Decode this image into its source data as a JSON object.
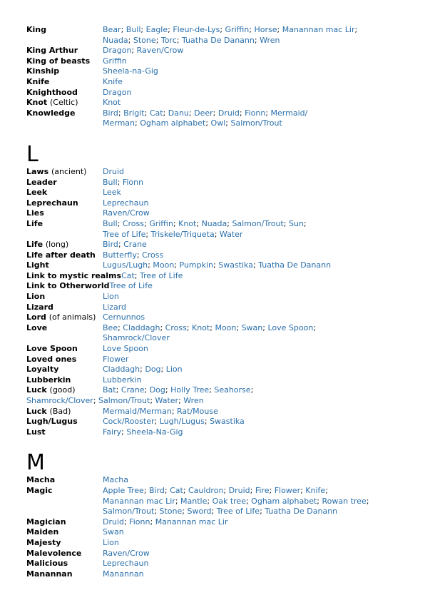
{
  "meta": {
    "background_color": "#ffffff",
    "link_color": "#2a6fab",
    "separator_color": "#1a1a1a",
    "text_color": "#000000",
    "separator": "; "
  },
  "sections": [
    {
      "letter": "",
      "entries": [
        {
          "term": "King",
          "note": "",
          "lines": [
            {
              "links": [
                "Bear",
                "Bull",
                "Eagle",
                "Fleur-de-Lys",
                "Griffin",
                "Horse",
                "Manannan mac Lir"
              ],
              "end": ";"
            },
            {
              "links": [
                "Nuada",
                "Stone",
                "Torc",
                "Tuatha De Danann",
                "Wren"
              ],
              "end": ""
            }
          ]
        },
        {
          "term": "King Arthur",
          "note": "",
          "lines": [
            {
              "links": [
                "Dragon",
                "Raven/Crow"
              ],
              "end": ""
            }
          ]
        },
        {
          "term": "King of beasts",
          "note": "",
          "lines": [
            {
              "links": [
                "Griffin"
              ],
              "end": ""
            }
          ]
        },
        {
          "term": "Kinship",
          "note": "",
          "lines": [
            {
              "links": [
                "Sheela-na-Gig"
              ],
              "end": ""
            }
          ]
        },
        {
          "term": "Knife",
          "note": "",
          "lines": [
            {
              "links": [
                "Knife"
              ],
              "end": ""
            }
          ]
        },
        {
          "term": "Knighthood",
          "note": "",
          "lines": [
            {
              "links": [
                "Dragon"
              ],
              "end": ""
            }
          ]
        },
        {
          "term": "Knot",
          "note": "(Celtic)",
          "lines": [
            {
              "links": [
                "Knot"
              ],
              "end": ""
            }
          ]
        },
        {
          "term": "Knowledge",
          "note": "",
          "lines": [
            {
              "links": [
                "Bird",
                "Brigit",
                "Cat",
                "Danu",
                "Deer",
                "Druid",
                "Fionn",
                "Mermaid/"
              ],
              "end": ""
            },
            {
              "links": [
                "Merman",
                "Ogham alphabet",
                "Owl",
                "Salmon/Trout"
              ],
              "end": ""
            }
          ]
        }
      ]
    },
    {
      "letter": "L",
      "entries": [
        {
          "term": "Laws",
          "note": "(ancient)",
          "lines": [
            {
              "links": [
                "Druid"
              ],
              "end": ""
            }
          ]
        },
        {
          "term": "Leader",
          "note": "",
          "lines": [
            {
              "links": [
                "Bull",
                "Fionn"
              ],
              "end": ""
            }
          ]
        },
        {
          "term": "Leek",
          "note": "",
          "lines": [
            {
              "links": [
                "Leek"
              ],
              "end": ""
            }
          ]
        },
        {
          "term": "Leprechaun",
          "note": "",
          "lines": [
            {
              "links": [
                "Leprechaun"
              ],
              "end": ""
            }
          ]
        },
        {
          "term": "Lies",
          "note": "",
          "lines": [
            {
              "links": [
                "Raven/Crow"
              ],
              "end": ""
            }
          ]
        },
        {
          "term": "Life",
          "note": "",
          "lines": [
            {
              "links": [
                "Bull",
                "Cross",
                "Griffin",
                "Knot",
                "Nuada",
                "Salmon/Trout",
                "Sun"
              ],
              "end": ";"
            },
            {
              "links": [
                "Tree of Life",
                "Triskele/Triqueta",
                "Water"
              ],
              "end": ""
            }
          ]
        },
        {
          "term": "Life",
          "note": "(long)",
          "lines": [
            {
              "links": [
                "Bird",
                "Crane"
              ],
              "end": ""
            }
          ]
        },
        {
          "term": "Life after death",
          "note": "",
          "lines": [
            {
              "links": [
                "Butterfly",
                "Cross"
              ],
              "end": ""
            }
          ]
        },
        {
          "term": "Light",
          "note": "",
          "lines": [
            {
              "links": [
                "Lugus/Lugh",
                "Moon",
                "Pumpkin",
                "Swastika",
                "Tuatha De Danann"
              ],
              "end": ""
            }
          ]
        },
        {
          "term": "Link to mystic realms",
          "note": "",
          "lines": [
            {
              "links": [
                "Cat",
                "Tree of Life"
              ],
              "end": ""
            }
          ]
        },
        {
          "term": "Link to Otherworld",
          "note": "",
          "lines": [
            {
              "links": [
                "Tree of Life"
              ],
              "end": ""
            }
          ]
        },
        {
          "term": "Lion",
          "note": "",
          "lines": [
            {
              "links": [
                "Lion"
              ],
              "end": ""
            }
          ]
        },
        {
          "term": "Lizard",
          "note": "",
          "lines": [
            {
              "links": [
                "Lizard"
              ],
              "end": ""
            }
          ]
        },
        {
          "term": "Lord",
          "note": "(of animals)",
          "lines": [
            {
              "links": [
                "Cernunnos"
              ],
              "end": ""
            }
          ]
        },
        {
          "term": "Love",
          "note": "",
          "lines": [
            {
              "links": [
                "Bee",
                "Claddagh",
                "Cross",
                "Knot",
                "Moon",
                "Swan",
                "Love Spoon"
              ],
              "end": ";"
            },
            {
              "links": [
                "Shamrock/Clover"
              ],
              "end": ""
            }
          ]
        },
        {
          "term": "Love Spoon",
          "note": "",
          "lines": [
            {
              "links": [
                "Love Spoon"
              ],
              "end": ""
            }
          ]
        },
        {
          "term": "Loved ones",
          "note": "",
          "lines": [
            {
              "links": [
                "Flower"
              ],
              "end": ""
            }
          ]
        },
        {
          "term": "Loyalty",
          "note": "",
          "lines": [
            {
              "links": [
                "Claddagh",
                "Dog",
                "Lion"
              ],
              "end": ""
            }
          ]
        },
        {
          "term": "Lubberkin",
          "note": "",
          "lines": [
            {
              "links": [
                "Lubberkin"
              ],
              "end": ""
            }
          ]
        },
        {
          "term": "Luck",
          "note": "(good)",
          "lines": [
            {
              "links": [
                "Bat",
                "Crane",
                "Dog",
                "Holly Tree",
                "Seahorse"
              ],
              "end": ";"
            },
            {
              "links": [
                "Shamrock/Clover",
                "Salmon/Trout",
                "Water",
                "Wren"
              ],
              "end": "",
              "flush": true
            }
          ]
        },
        {
          "term": "Luck",
          "note": "(Bad)",
          "lines": [
            {
              "links": [
                "Mermaid/Merman",
                "Rat/Mouse"
              ],
              "end": ""
            }
          ]
        },
        {
          "term": "Lugh/Lugus",
          "note": "",
          "lines": [
            {
              "links": [
                "Cock/Rooster",
                "Lugh/Lugus",
                "Swastika"
              ],
              "end": ""
            }
          ]
        },
        {
          "term": "Lust",
          "note": "",
          "lines": [
            {
              "links": [
                "Fairy",
                "Sheela-Na-Gig"
              ],
              "end": ""
            }
          ]
        }
      ]
    },
    {
      "letter": "M",
      "entries": [
        {
          "term": "Macha",
          "note": "",
          "lines": [
            {
              "links": [
                "Macha"
              ],
              "end": ""
            }
          ]
        },
        {
          "term": "Magic",
          "note": "",
          "lines": [
            {
              "links": [
                "Apple Tree",
                "Bird",
                "Cat",
                "Cauldron",
                "Druid",
                "Fire",
                "Flower",
                "Knife"
              ],
              "end": ";"
            },
            {
              "links": [
                "Manannan mac Lir",
                "Mantle",
                "Oak tree",
                "Ogham alphabet",
                "Rowan tree"
              ],
              "end": ";"
            },
            {
              "links": [
                "Salmon/Trout",
                "Stone",
                "Sword",
                "Tree of Life",
                "Tuatha De Danann"
              ],
              "end": ""
            }
          ]
        },
        {
          "term": "Magician",
          "note": "",
          "lines": [
            {
              "links": [
                "Druid",
                "Fionn",
                "Manannan mac Lir"
              ],
              "end": ""
            }
          ]
        },
        {
          "term": "Maiden",
          "note": "",
          "lines": [
            {
              "links": [
                "Swan"
              ],
              "end": ""
            }
          ]
        },
        {
          "term": "Majesty",
          "note": "",
          "lines": [
            {
              "links": [
                "Lion"
              ],
              "end": ""
            }
          ]
        },
        {
          "term": "Malevolence",
          "note": "",
          "lines": [
            {
              "links": [
                "Raven/Crow"
              ],
              "end": ""
            }
          ]
        },
        {
          "term": "Malicious",
          "note": "",
          "lines": [
            {
              "links": [
                "Leprechaun"
              ],
              "end": ""
            }
          ]
        },
        {
          "term": "Manannan",
          "note": "",
          "lines": [
            {
              "links": [
                "Manannan"
              ],
              "end": ""
            }
          ]
        }
      ]
    }
  ]
}
